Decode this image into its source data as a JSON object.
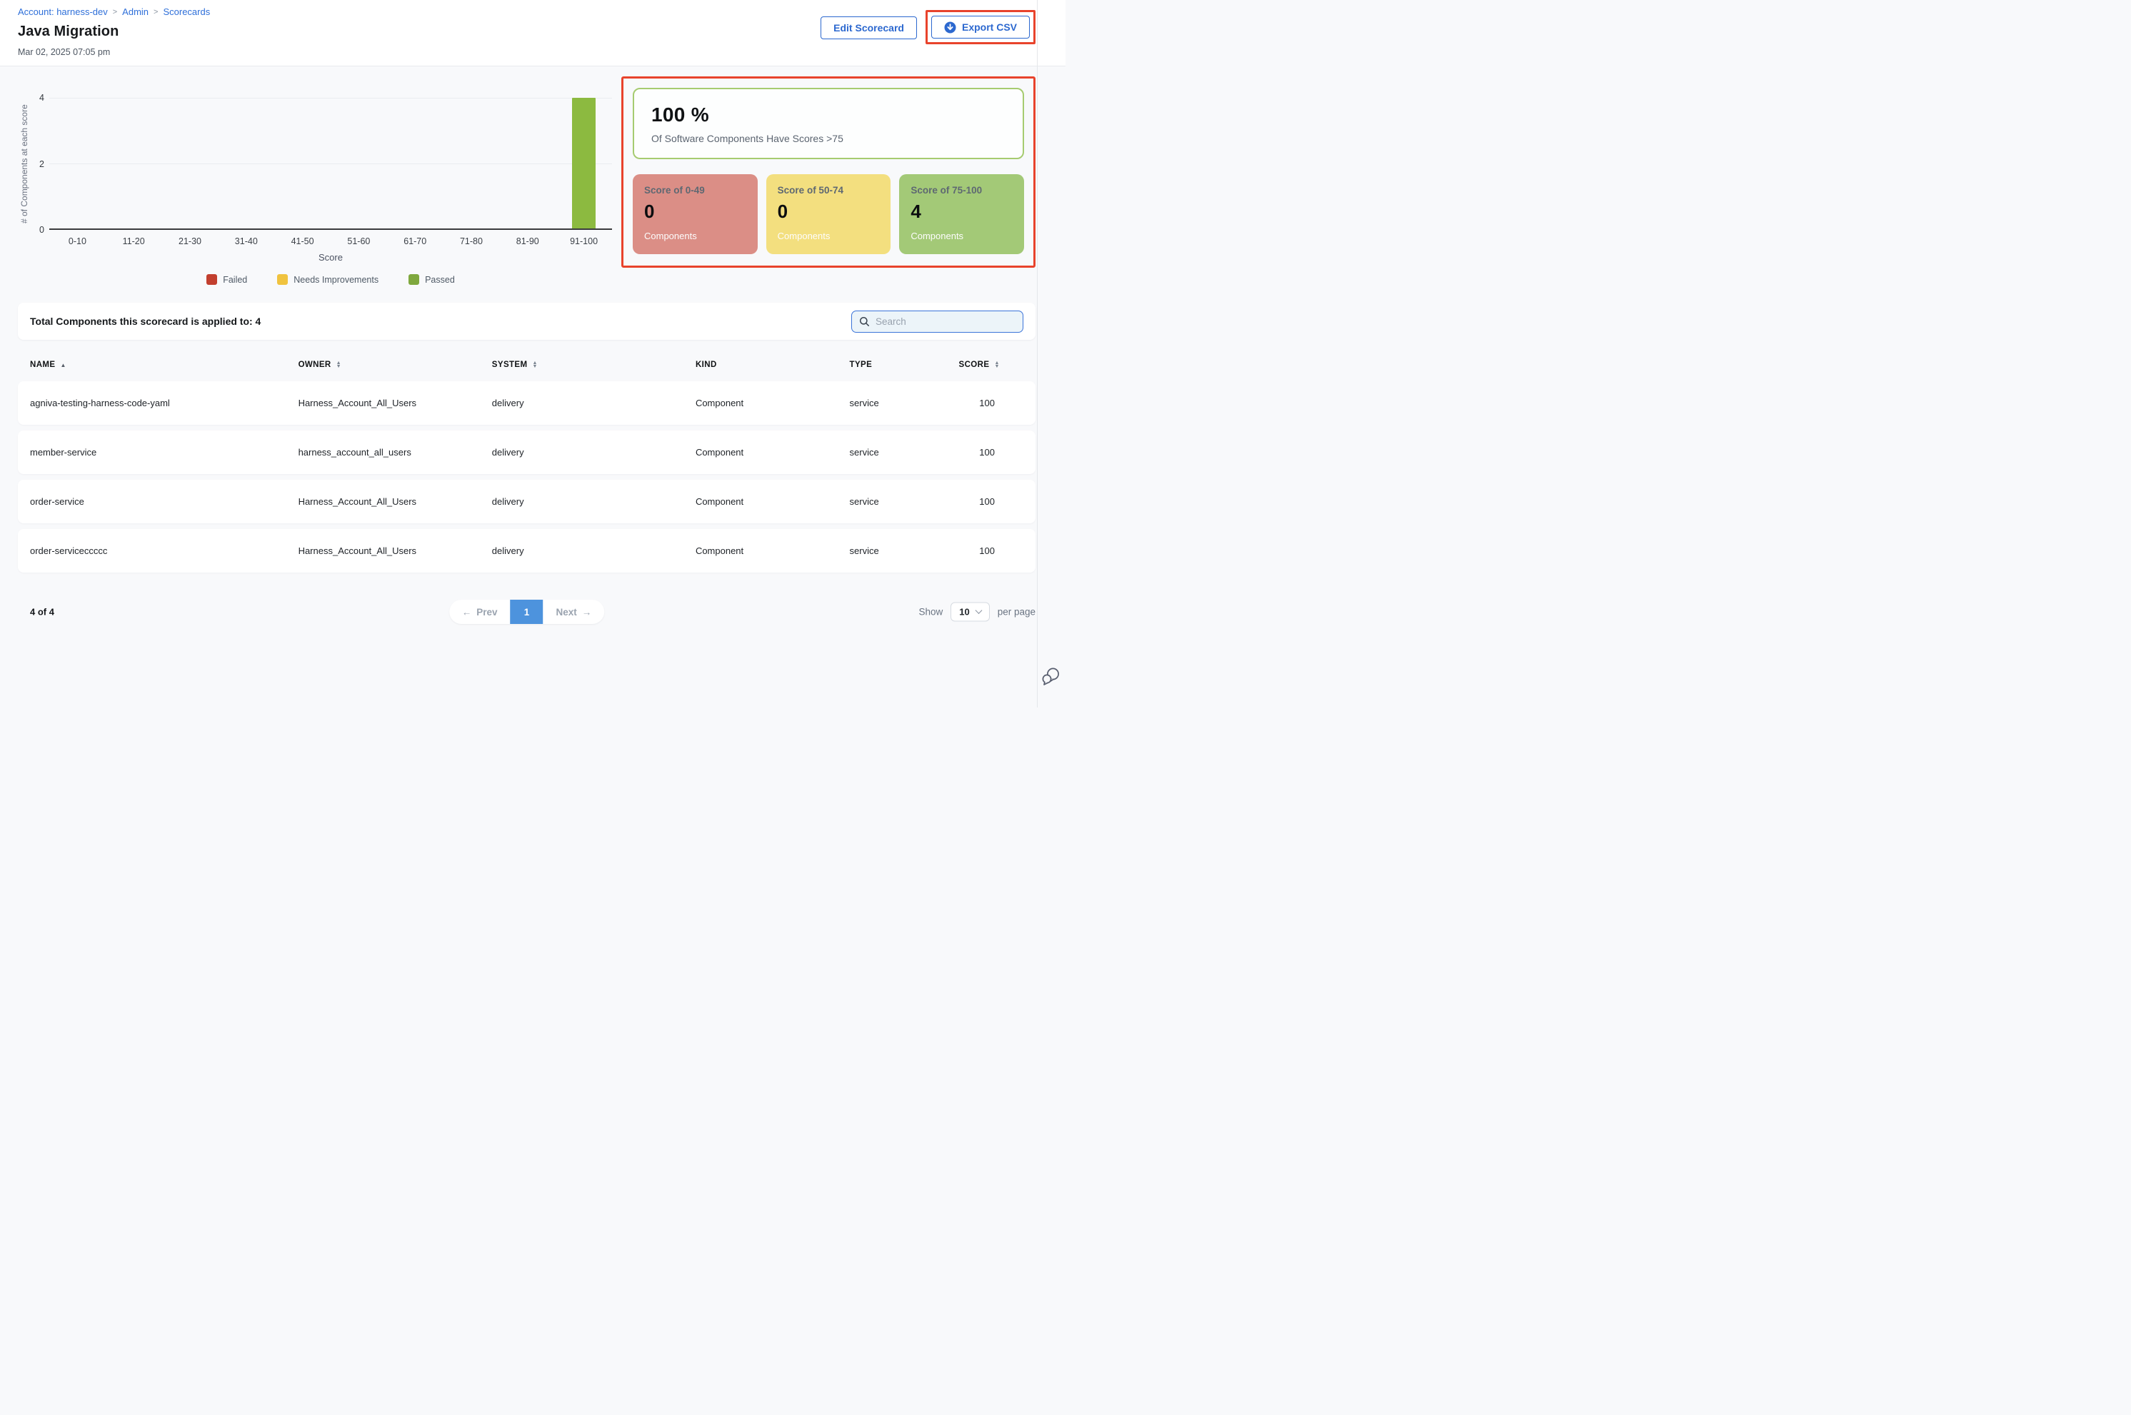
{
  "breadcrumb": {
    "items": [
      {
        "label": "Account: harness-dev"
      },
      {
        "label": "Admin"
      },
      {
        "label": "Scorecards"
      }
    ],
    "separator": ">"
  },
  "header": {
    "title": "Java Migration",
    "date": "Mar 02, 2025 07:05 pm",
    "edit_button": "Edit Scorecard",
    "export_button": "Export CSV"
  },
  "chart_data": {
    "type": "bar",
    "categories": [
      "0-10",
      "11-20",
      "21-30",
      "31-40",
      "41-50",
      "51-60",
      "61-70",
      "71-80",
      "81-90",
      "91-100"
    ],
    "values": [
      0,
      0,
      0,
      0,
      0,
      0,
      0,
      0,
      0,
      4
    ],
    "bar_color": "#8CBA40",
    "xlabel": "Score",
    "ylabel": "# of Components at each score",
    "ylim": [
      0,
      4
    ],
    "yticks": [
      0,
      2,
      4
    ],
    "grid": true,
    "legend_position": "bottom",
    "legend": [
      {
        "label": "Failed",
        "color": "#C23F2E"
      },
      {
        "label": "Needs Improvements",
        "color": "#F0C33F"
      },
      {
        "label": "Passed",
        "color": "#7FA83E"
      }
    ]
  },
  "stats": {
    "headline_value": "100 %",
    "headline_caption": "Of Software Components Have Scores >75",
    "border_color": "#A6CB70",
    "cards": [
      {
        "label": "Score of 0-49",
        "value": "0",
        "caption": "Components",
        "bg": "#DB8E86"
      },
      {
        "label": "Score of 50-74",
        "value": "0",
        "caption": "Components",
        "bg": "#F3DF7F"
      },
      {
        "label": "Score of 75-100",
        "value": "4",
        "caption": "Components",
        "bg": "#A3C977"
      }
    ]
  },
  "table": {
    "total_label": "Total Components this scorecard is applied to: 4",
    "search_placeholder": "Search",
    "columns": [
      {
        "label": "NAME",
        "sort": "asc"
      },
      {
        "label": "OWNER",
        "sort": "both"
      },
      {
        "label": "SYSTEM",
        "sort": "both"
      },
      {
        "label": "KIND",
        "sort": "none"
      },
      {
        "label": "TYPE",
        "sort": "none"
      },
      {
        "label": "SCORE",
        "sort": "both"
      }
    ],
    "rows": [
      {
        "name": "agniva-testing-harness-code-yaml",
        "owner": "Harness_Account_All_Users",
        "system": "delivery",
        "kind": "Component",
        "type": "service",
        "score": "100"
      },
      {
        "name": "member-service",
        "owner": "harness_account_all_users",
        "system": "delivery",
        "kind": "Component",
        "type": "service",
        "score": "100"
      },
      {
        "name": "order-service",
        "owner": "Harness_Account_All_Users",
        "system": "delivery",
        "kind": "Component",
        "type": "service",
        "score": "100"
      },
      {
        "name": "order-serviceccccc",
        "owner": "Harness_Account_All_Users",
        "system": "delivery",
        "kind": "Component",
        "type": "service",
        "score": "100"
      }
    ]
  },
  "pagination": {
    "count_label": "4 of 4",
    "prev_arrow": "←",
    "prev_label": "Prev",
    "page": "1",
    "next_label": "Next",
    "next_arrow": "→",
    "show_label": "Show",
    "page_size": "10",
    "per_page_label": "per page"
  }
}
